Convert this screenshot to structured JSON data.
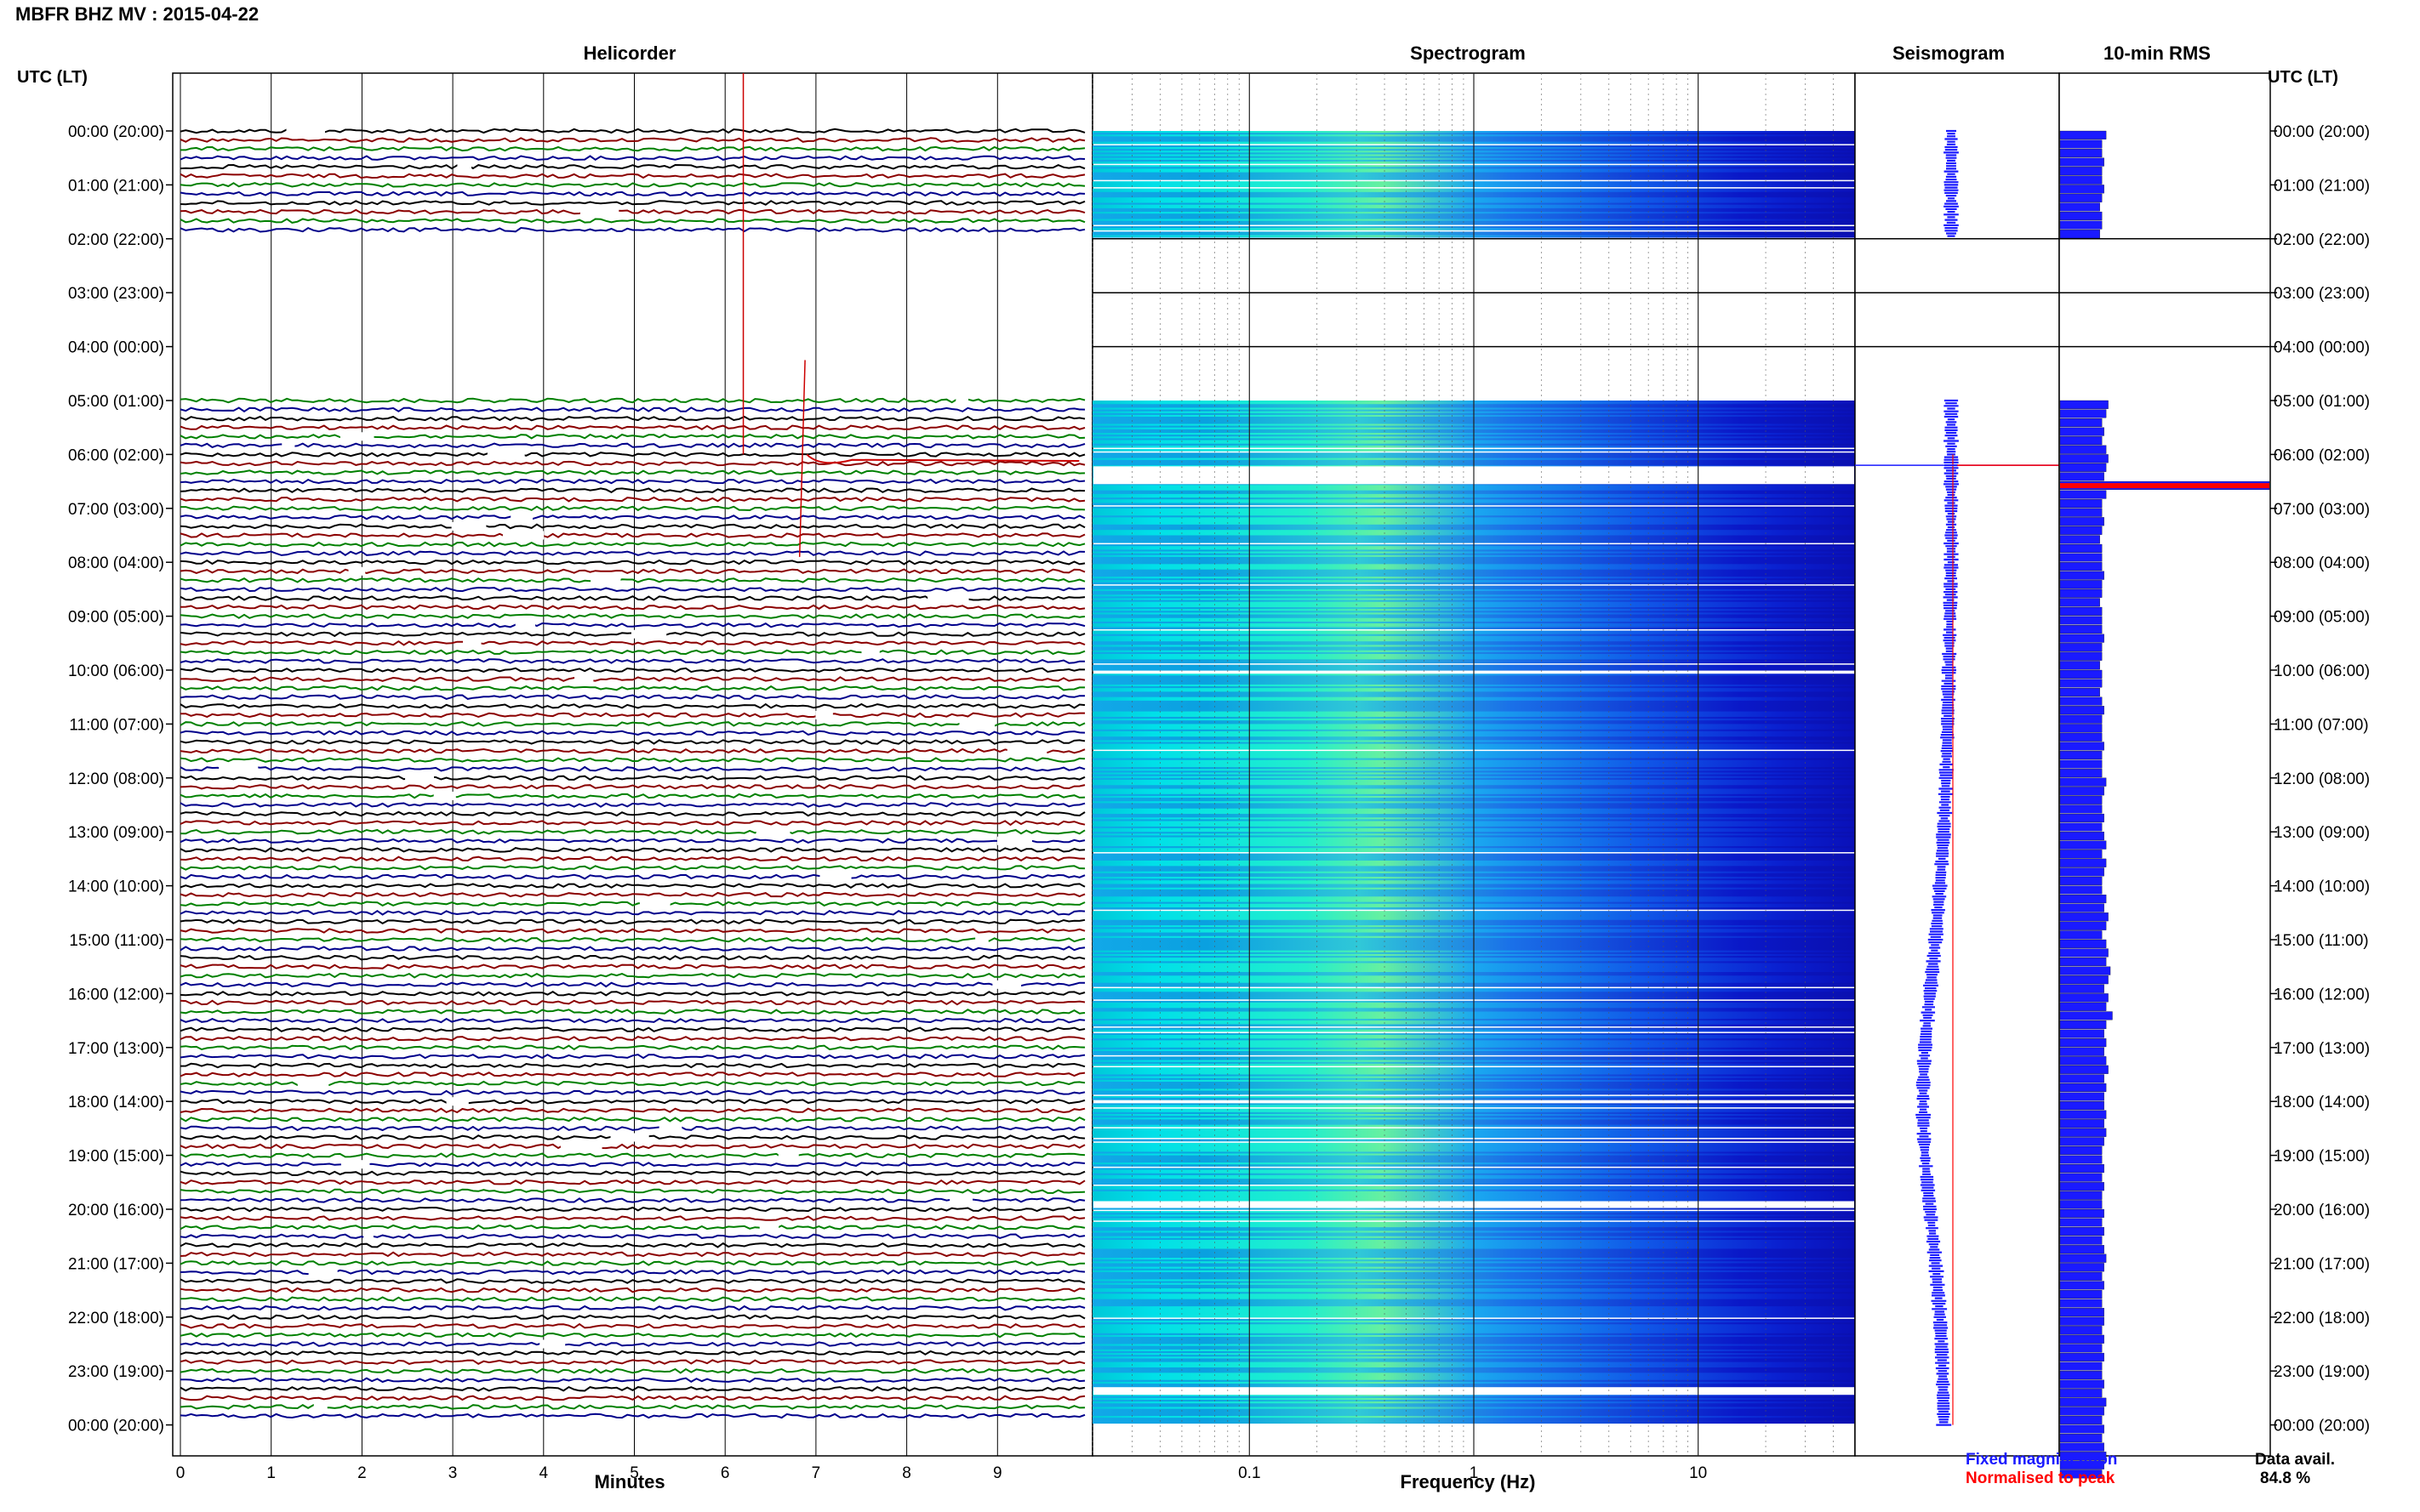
{
  "title": "MBFR BHZ MV : 2015-04-22",
  "panels": {
    "helicorder": "Helicorder",
    "spectrogram": "Spectrogram",
    "seismogram": "Seismogram",
    "rms": "10-min RMS"
  },
  "utc_header": "UTC (LT)",
  "xlabels": {
    "helicorder": "Minutes",
    "spectrogram": "Frequency (Hz)"
  },
  "legend": {
    "fixed": "Fixed magnification",
    "normalised": "Normalised to peak",
    "fixed_color": "#1a1aff",
    "normalised_color": "#ff0000"
  },
  "data_avail": {
    "label": "Data avail.",
    "value": "84.8 %"
  },
  "colors": {
    "trace_cycle": [
      "#000000",
      "#8b0000",
      "#008000",
      "#00008b"
    ],
    "rms_bar": "#1a1aff",
    "spectrogram_low": "#00ffff",
    "spectrogram_high": "#0a10c8"
  },
  "chart_data": {
    "type": "heatmap",
    "date": "2015-04-22",
    "station": "MBFR BHZ MV",
    "time_labels": [
      "00:00 (20:00)",
      "01:00 (21:00)",
      "02:00 (22:00)",
      "03:00 (23:00)",
      "04:00 (00:00)",
      "05:00 (01:00)",
      "06:00 (02:00)",
      "07:00 (03:00)",
      "08:00 (04:00)",
      "09:00 (05:00)",
      "10:00 (06:00)",
      "11:00 (07:00)",
      "12:00 (08:00)",
      "13:00 (09:00)",
      "14:00 (10:00)",
      "15:00 (11:00)",
      "16:00 (12:00)",
      "17:00 (13:00)",
      "18:00 (14:00)",
      "19:00 (15:00)",
      "20:00 (16:00)",
      "21:00 (17:00)",
      "22:00 (18:00)",
      "23:00 (19:00)",
      "00:00 (20:00)"
    ],
    "helicorder": {
      "x_ticks": [
        0,
        1,
        2,
        3,
        4,
        5,
        6,
        7,
        8,
        9
      ],
      "xlim": [
        0,
        10
      ],
      "xlabel": "Minutes",
      "gap_hours": [
        2,
        3,
        4
      ],
      "event_hour": 6.0,
      "event_minute": 6.2
    },
    "spectrogram": {
      "x_ticks": [
        "0.1",
        "1",
        "10"
      ],
      "xlim_hz": [
        0.02,
        50
      ],
      "scale": "log",
      "xlabel": "Frequency (Hz)",
      "gap_hours": [
        2,
        3,
        4
      ]
    },
    "rms_10min": {
      "units": "relative",
      "xlim": [
        0,
        1
      ],
      "values": [
        0.22,
        0.2,
        0.2,
        0.21,
        0.2,
        0.2,
        0.21,
        0.2,
        0.19,
        0.2,
        0.2,
        0.19,
        0,
        0,
        0,
        0,
        0,
        0,
        0,
        0,
        0,
        0,
        0,
        0,
        0,
        0,
        0,
        0,
        0,
        0,
        0.23,
        0.22,
        0.2,
        0.21,
        0.2,
        0.22,
        0.23,
        0.22,
        0.21,
        1.0,
        0.22,
        0.2,
        0.2,
        0.21,
        0.2,
        0.19,
        0.2,
        0.2,
        0.2,
        0.21,
        0.2,
        0.2,
        0.19,
        0.2,
        0.2,
        0.2,
        0.21,
        0.2,
        0.2,
        0.19,
        0.2,
        0.2,
        0.19,
        0.2,
        0.21,
        0.2,
        0.2,
        0.2,
        0.21,
        0.2,
        0.2,
        0.2,
        0.22,
        0.21,
        0.2,
        0.2,
        0.21,
        0.2,
        0.21,
        0.22,
        0.2,
        0.22,
        0.21,
        0.2,
        0.2,
        0.22,
        0.21,
        0.23,
        0.22,
        0.2,
        0.22,
        0.23,
        0.22,
        0.24,
        0.23,
        0.21,
        0.23,
        0.22,
        0.25,
        0.22,
        0.21,
        0.22,
        0.21,
        0.22,
        0.23,
        0.21,
        0.22,
        0.21,
        0.21,
        0.22,
        0.21,
        0.22,
        0.21,
        0.2,
        0.2,
        0.21,
        0.2,
        0.21,
        0.2,
        0.2,
        0.21,
        0.2,
        0.21,
        0.2,
        0.21,
        0.22,
        0.21,
        0.2,
        0.21,
        0.2,
        0.2,
        0.21,
        0.21,
        0.2,
        0.21,
        0.2,
        0.21,
        0.2,
        0.2,
        0.21,
        0.2,
        0.22,
        0.21,
        0.2,
        0.21,
        0.2,
        0.21,
        0.22,
        0.21,
        0.2
      ]
    }
  }
}
